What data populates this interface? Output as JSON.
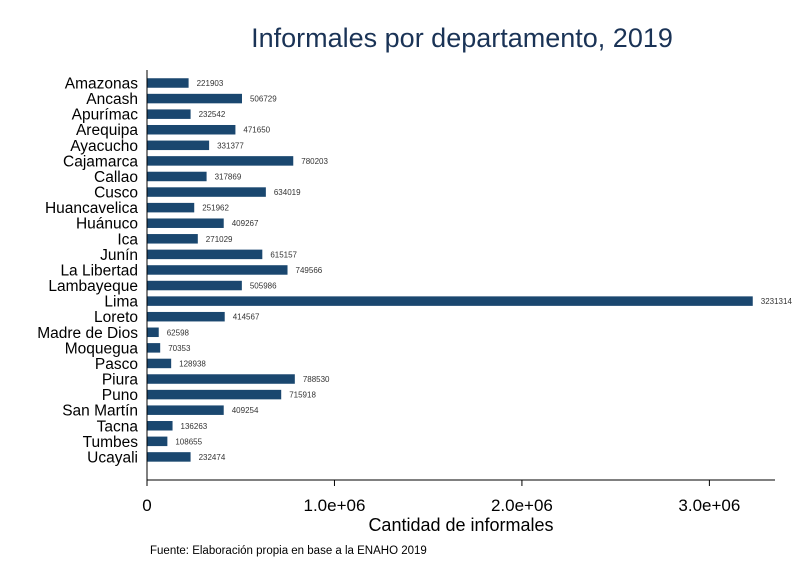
{
  "chart_data": {
    "type": "bar",
    "orientation": "horizontal",
    "title": "Informales por departamento, 2019",
    "xlabel": "Cantidad de informales",
    "ylabel": "",
    "note": "Fuente: Elaboración propia en base a la ENAHO 2019",
    "xlim": [
      0,
      3350000
    ],
    "xticks": [
      0,
      1000000,
      2000000,
      3000000
    ],
    "xtick_labels": [
      "0",
      "1.0e+06",
      "2.0e+06",
      "3.0e+06"
    ],
    "categories": [
      "Amazonas",
      "Ancash",
      "Apurímac",
      "Arequipa",
      "Ayacucho",
      "Cajamarca",
      "Callao",
      "Cusco",
      "Huancavelica",
      "Huánuco",
      "Ica",
      "Junín",
      "La Libertad",
      "Lambayeque",
      "Lima",
      "Loreto",
      "Madre de Dios",
      "Moquegua",
      "Pasco",
      "Piura",
      "Puno",
      "San Martín",
      "Tacna",
      "Tumbes",
      "Ucayali"
    ],
    "values": [
      221903,
      506729,
      232542,
      471650,
      331377,
      780203,
      317869,
      634019,
      251962,
      409267,
      271029,
      615157,
      749566,
      505986,
      3231314,
      414567,
      62598,
      70353,
      128938,
      788530,
      715918,
      409254,
      136263,
      108655,
      232474
    ],
    "bar_color": "#1a476f",
    "title_color": "#1a3356",
    "grid": false,
    "legend": "none"
  }
}
